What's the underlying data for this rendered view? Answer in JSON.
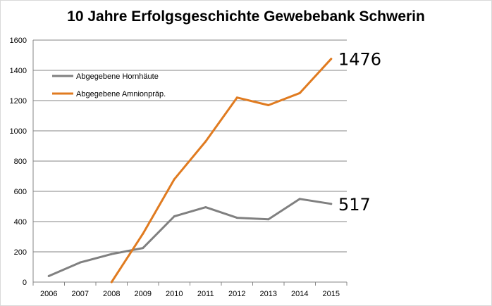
{
  "chart_data": {
    "type": "line",
    "title": "10 Jahre Erfolgsgeschichte Gewebebank Schwerin",
    "xlabel": "",
    "ylabel": "",
    "categories": [
      "2006",
      "2007",
      "2008",
      "2009",
      "2010",
      "2011",
      "2012",
      "2013",
      "2014",
      "2015"
    ],
    "ylim": [
      0,
      1600
    ],
    "yticks": [
      0,
      200,
      400,
      600,
      800,
      1000,
      1200,
      1400,
      1600
    ],
    "grid": true,
    "legend_position": "top-left",
    "series": [
      {
        "name": "Abgegebene Hornhäute",
        "color": "#808080",
        "values": [
          40,
          130,
          185,
          225,
          435,
          495,
          425,
          415,
          550,
          517
        ]
      },
      {
        "name": "Abgegebene Amnionpräp.",
        "color": "#e07b20",
        "values": [
          null,
          null,
          0,
          320,
          680,
          930,
          1220,
          1170,
          1250,
          1476
        ]
      }
    ],
    "annotations": [
      {
        "text": "1476",
        "series": 1,
        "category": "2015"
      },
      {
        "text": "517",
        "series": 0,
        "category": "2015"
      }
    ]
  }
}
